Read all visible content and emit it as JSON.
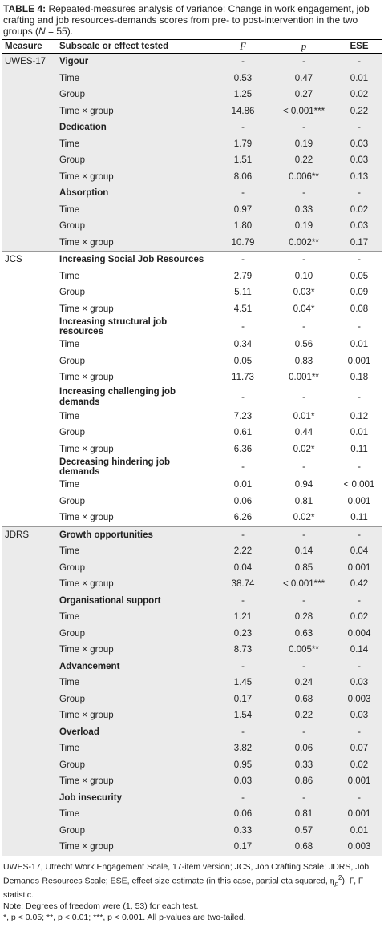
{
  "caption": {
    "label": "TABLE 4:",
    "text": "Repeated-measures analysis of variance: Change in work engagement, job crafting and job resources-demands scores from pre- to post-intervention in the two groups (",
    "n_symbol": "N",
    "n_value": " = 55)."
  },
  "headers": {
    "measure": "Measure",
    "subscale": "Subscale or effect tested",
    "f": "F",
    "p": "p",
    "ese": "ESE"
  },
  "rows": [
    {
      "measure": "UWES-17",
      "label": "Vigour",
      "type": "sub",
      "f": "-",
      "p": "-",
      "ese": "-",
      "grey": true
    },
    {
      "measure": "",
      "label": "Time",
      "type": "effect",
      "f": "0.53",
      "p": "0.47",
      "ese": "0.01",
      "grey": true
    },
    {
      "measure": "",
      "label": "Group",
      "type": "effect",
      "f": "1.25",
      "p": "0.27",
      "ese": "0.02",
      "grey": true
    },
    {
      "measure": "",
      "label": "Time × group",
      "type": "effect",
      "f": "14.86",
      "p": "< 0.001***",
      "ese": "0.22",
      "grey": true
    },
    {
      "measure": "",
      "label": "Dedication",
      "type": "sub",
      "f": "-",
      "p": "-",
      "ese": "-",
      "grey": true
    },
    {
      "measure": "",
      "label": "Time",
      "type": "effect",
      "f": "1.79",
      "p": "0.19",
      "ese": "0.03",
      "grey": true
    },
    {
      "measure": "",
      "label": "Group",
      "type": "effect",
      "f": "1.51",
      "p": "0.22",
      "ese": "0.03",
      "grey": true
    },
    {
      "measure": "",
      "label": "Time × group",
      "type": "effect",
      "f": "8.06",
      "p": "0.006**",
      "ese": "0.13",
      "grey": true
    },
    {
      "measure": "",
      "label": "Absorption",
      "type": "sub",
      "f": "-",
      "p": "-",
      "ese": "-",
      "grey": true
    },
    {
      "measure": "",
      "label": "Time",
      "type": "effect",
      "f": "0.97",
      "p": "0.33",
      "ese": "0.02",
      "grey": true
    },
    {
      "measure": "",
      "label": "Group",
      "type": "effect",
      "f": "1.80",
      "p": "0.19",
      "ese": "0.03",
      "grey": true
    },
    {
      "measure": "",
      "label": "Time × group",
      "type": "effect",
      "f": "10.79",
      "p": "0.002**",
      "ese": "0.17",
      "grey": true,
      "end": true
    },
    {
      "measure": "JCS",
      "label": "Increasing Social Job Resources",
      "type": "sub",
      "f": "-",
      "p": "-",
      "ese": "-",
      "grey": false
    },
    {
      "measure": "",
      "label": "Time",
      "type": "effect",
      "f": "2.79",
      "p": "0.10",
      "ese": "0.05",
      "grey": false
    },
    {
      "measure": "",
      "label": "Group",
      "type": "effect",
      "f": "5.11",
      "p": "0.03*",
      "ese": "0.09",
      "grey": false
    },
    {
      "measure": "",
      "label": "Time × group",
      "type": "effect",
      "f": "4.51",
      "p": "0.04*",
      "ese": "0.08",
      "grey": false
    },
    {
      "measure": "",
      "label": "Increasing structural job resources",
      "type": "sub",
      "f": "-",
      "p": "-",
      "ese": "-",
      "grey": false
    },
    {
      "measure": "",
      "label": "Time",
      "type": "effect",
      "f": "0.34",
      "p": "0.56",
      "ese": "0.01",
      "grey": false
    },
    {
      "measure": "",
      "label": "Group",
      "type": "effect",
      "f": "0.05",
      "p": "0.83",
      "ese": "0.001",
      "grey": false
    },
    {
      "measure": "",
      "label": "Time × group",
      "type": "effect",
      "f": "11.73",
      "p": "0.001**",
      "ese": "0.18",
      "grey": false
    },
    {
      "measure": "",
      "label": "Increasing challenging job demands",
      "type": "sub",
      "f": "-",
      "p": "-",
      "ese": "-",
      "grey": false,
      "twoline": true
    },
    {
      "measure": "",
      "label": "Time",
      "type": "effect",
      "f": "7.23",
      "p": "0.01*",
      "ese": "0.12",
      "grey": false
    },
    {
      "measure": "",
      "label": "Group",
      "type": "effect",
      "f": "0.61",
      "p": "0.44",
      "ese": "0.01",
      "grey": false
    },
    {
      "measure": "",
      "label": "Time × group",
      "type": "effect",
      "f": "6.36",
      "p": "0.02*",
      "ese": "0.11",
      "grey": false
    },
    {
      "measure": "",
      "label": "Decreasing hindering job demands",
      "type": "sub",
      "f": "-",
      "p": "-",
      "ese": "-",
      "grey": false
    },
    {
      "measure": "",
      "label": "Time",
      "type": "effect",
      "f": "0.01",
      "p": "0.94",
      "ese": "< 0.001",
      "grey": false
    },
    {
      "measure": "",
      "label": "Group",
      "type": "effect",
      "f": "0.06",
      "p": "0.81",
      "ese": "0.001",
      "grey": false
    },
    {
      "measure": "",
      "label": "Time × group",
      "type": "effect",
      "f": "6.26",
      "p": "0.02*",
      "ese": "0.11",
      "grey": false,
      "end": true
    },
    {
      "measure": "JDRS",
      "label": "Growth opportunities",
      "type": "sub",
      "f": "-",
      "p": "-",
      "ese": "-",
      "grey": true
    },
    {
      "measure": "",
      "label": "Time",
      "type": "effect",
      "f": "2.22",
      "p": "0.14",
      "ese": "0.04",
      "grey": true
    },
    {
      "measure": "",
      "label": "Group",
      "type": "effect",
      "f": "0.04",
      "p": "0.85",
      "ese": "0.001",
      "grey": true
    },
    {
      "measure": "",
      "label": "Time × group",
      "type": "effect",
      "f": "38.74",
      "p": "< 0.001***",
      "ese": "0.42",
      "grey": true
    },
    {
      "measure": "",
      "label": "Organisational support",
      "type": "sub",
      "f": "-",
      "p": "-",
      "ese": "-",
      "grey": true
    },
    {
      "measure": "",
      "label": "Time",
      "type": "effect",
      "f": "1.21",
      "p": "0.28",
      "ese": "0.02",
      "grey": true
    },
    {
      "measure": "",
      "label": "Group",
      "type": "effect",
      "f": "0.23",
      "p": "0.63",
      "ese": "0.004",
      "grey": true
    },
    {
      "measure": "",
      "label": "Time × group",
      "type": "effect",
      "f": "8.73",
      "p": "0.005**",
      "ese": "0.14",
      "grey": true
    },
    {
      "measure": "",
      "label": "Advancement",
      "type": "sub",
      "f": "-",
      "p": "-",
      "ese": "-",
      "grey": true
    },
    {
      "measure": "",
      "label": "Time",
      "type": "effect",
      "f": "1.45",
      "p": "0.24",
      "ese": "0.03",
      "grey": true
    },
    {
      "measure": "",
      "label": "Group",
      "type": "effect",
      "f": "0.17",
      "p": "0.68",
      "ese": "0.003",
      "grey": true
    },
    {
      "measure": "",
      "label": "Time × group",
      "type": "effect",
      "f": "1.54",
      "p": "0.22",
      "ese": "0.03",
      "grey": true
    },
    {
      "measure": "",
      "label": "Overload",
      "type": "sub",
      "f": "-",
      "p": "-",
      "ese": "-",
      "grey": true
    },
    {
      "measure": "",
      "label": "Time",
      "type": "effect",
      "f": "3.82",
      "p": "0.06",
      "ese": "0.07",
      "grey": true
    },
    {
      "measure": "",
      "label": "Group",
      "type": "effect",
      "f": "0.95",
      "p": "0.33",
      "ese": "0.02",
      "grey": true
    },
    {
      "measure": "",
      "label": "Time × group",
      "type": "effect",
      "f": "0.03",
      "p": "0.86",
      "ese": "0.001",
      "grey": true
    },
    {
      "measure": "",
      "label": "Job insecurity",
      "type": "sub",
      "f": "-",
      "p": "-",
      "ese": "-",
      "grey": true
    },
    {
      "measure": "",
      "label": "Time",
      "type": "effect",
      "f": "0.06",
      "p": "0.81",
      "ese": "0.001",
      "grey": true
    },
    {
      "measure": "",
      "label": "Group",
      "type": "effect",
      "f": "0.33",
      "p": "0.57",
      "ese": "0.01",
      "grey": true
    },
    {
      "measure": "",
      "label": "Time × group",
      "type": "effect",
      "f": "0.17",
      "p": "0.68",
      "ese": "0.003",
      "grey": true,
      "last": true
    }
  ],
  "footer": {
    "abbreviations": "UWES-17, Utrecht Work Engagement Scale, 17-item version; JCS, Job Crafting Scale; JDRS, Job Demands-Resources Scale; ESE, effect size estimate (in this case, partial eta squared, η",
    "abbr_sub": "p",
    "abbr_sup": "2",
    "abbr_tail": "); F, F statistic.",
    "note": "Note: Degrees of freedom were (1, 53) for each test.",
    "significance": "*, p < 0.05; **, p < 0.01; ***, p < 0.001. All p-values are two-tailed."
  }
}
